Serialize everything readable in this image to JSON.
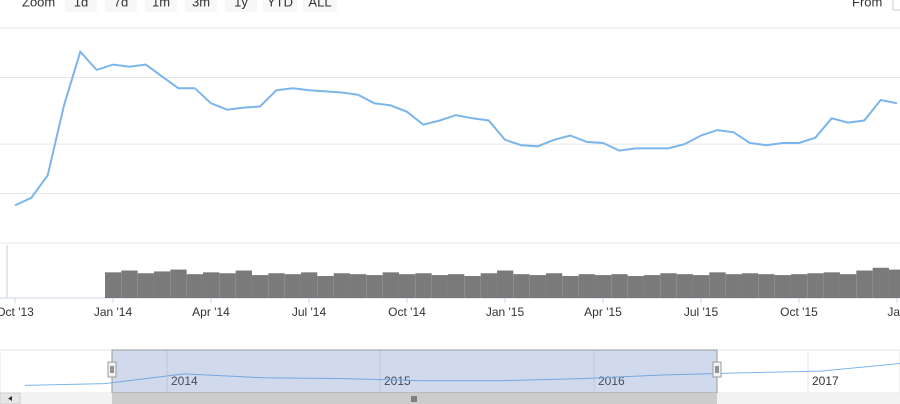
{
  "toolbar": {
    "zoom_label": "Zoom",
    "buttons": [
      "1d",
      "7d",
      "1m",
      "3m",
      "1y",
      "YTD",
      "ALL"
    ],
    "from_label": "From"
  },
  "chart_data": {
    "type": "line",
    "categories": [
      "Oct '13",
      null,
      null,
      null,
      null,
      null,
      "Jan '14",
      null,
      null,
      null,
      null,
      null,
      "Apr '14",
      null,
      null,
      null,
      null,
      null,
      "Jul '14",
      null,
      null,
      null,
      null,
      null,
      "Oct '14",
      null,
      null,
      null,
      null,
      null,
      "Jan '15",
      null,
      null,
      null,
      null,
      null,
      "Apr '15",
      null,
      null,
      null,
      null,
      null,
      "Jul '15",
      null,
      null,
      null,
      null,
      null,
      "Oct '15",
      null,
      null,
      null,
      null,
      null,
      "Jan"
    ],
    "values": [
      17.5,
      21,
      31.5,
      64,
      89,
      80.5,
      83,
      82,
      83,
      77.5,
      72,
      72,
      65,
      62,
      63,
      63.5,
      71,
      72,
      71,
      70.5,
      70,
      69,
      65,
      64,
      61,
      55,
      57,
      59.5,
      58,
      57,
      48,
      45.5,
      45,
      48,
      50,
      47,
      46.5,
      43,
      44,
      44,
      44,
      46,
      50,
      52.5,
      51.5,
      46.5,
      45.5,
      46.5,
      46.5,
      49,
      58,
      56,
      57,
      66.5,
      65
    ],
    "color": "#7cb5ec",
    "ylim": [
      0,
      100
    ],
    "yticks": [
      0,
      23,
      46,
      77,
      100
    ],
    "grid": true,
    "volume": {
      "values": [
        null,
        null,
        null,
        null,
        null,
        null,
        28,
        30,
        27,
        29,
        31,
        26,
        28,
        27,
        30,
        25,
        27,
        26,
        28,
        24,
        27,
        26,
        25,
        28,
        26,
        27,
        25,
        26,
        24,
        27,
        30,
        26,
        25,
        27,
        24,
        26,
        25,
        26,
        24,
        25,
        27,
        26,
        25,
        28,
        26,
        27,
        26,
        25,
        26,
        27,
        28,
        26,
        30,
        33,
        31
      ],
      "color": "#7a7a7a",
      "ylim": [
        0,
        60
      ]
    },
    "navigator": {
      "values": [
        18.6,
        23,
        46.5,
        37,
        35,
        30,
        30,
        35,
        44,
        49,
        53.5,
        72
      ],
      "color": "#7cb5ec",
      "labels": [
        "2014",
        "2015",
        "2016",
        "2017"
      ]
    }
  }
}
